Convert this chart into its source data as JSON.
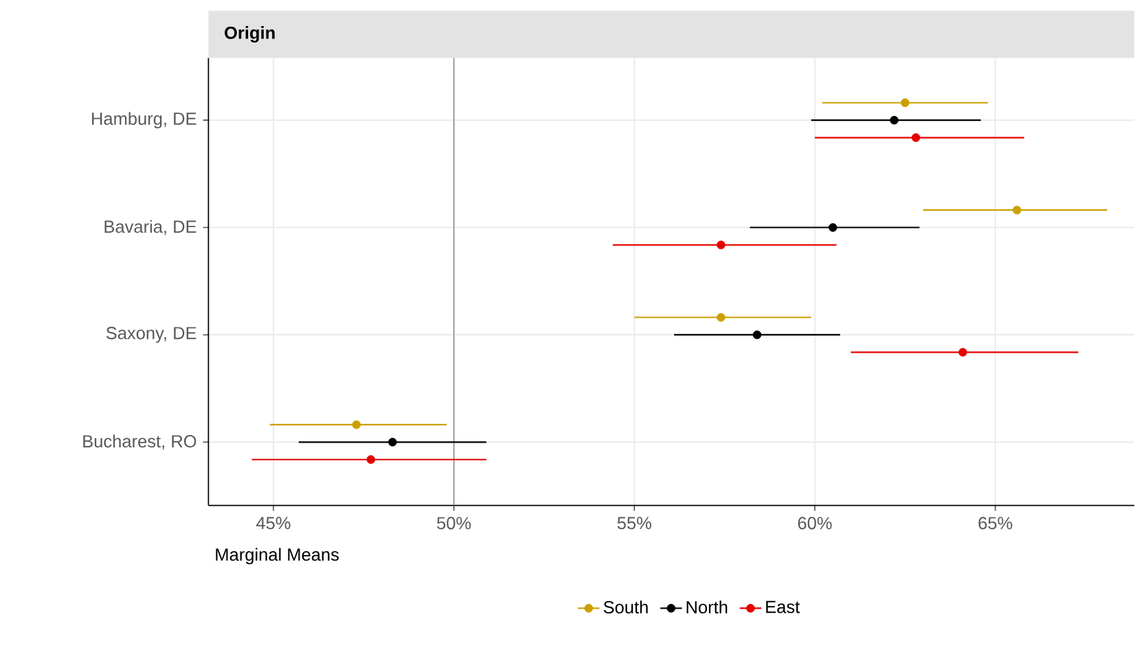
{
  "chart_data": {
    "type": "scatter",
    "title": "Origin",
    "xlabel": "Marginal Means",
    "orientation": "horizontal",
    "categories": [
      "Hamburg, DE",
      "Bavaria, DE",
      "Saxony, DE",
      "Bucharest, RO"
    ],
    "series": [
      {
        "name": "South",
        "color": "#cca000",
        "values": [
          62.5,
          65.6,
          57.4,
          47.3
        ],
        "errors": [
          [
            60.2,
            64.8
          ],
          [
            63.0,
            68.1
          ],
          [
            55.0,
            59.9
          ],
          [
            44.9,
            49.8
          ]
        ]
      },
      {
        "name": "North",
        "color": "#000000",
        "values": [
          62.2,
          60.5,
          58.4,
          48.3
        ],
        "errors": [
          [
            59.9,
            64.6
          ],
          [
            58.2,
            62.9
          ],
          [
            56.1,
            60.7
          ],
          [
            45.7,
            50.9
          ]
        ]
      },
      {
        "name": "East",
        "color": "#e50000",
        "values": [
          62.8,
          57.4,
          64.1,
          47.7
        ],
        "errors": [
          [
            60.0,
            65.8
          ],
          [
            54.4,
            60.6
          ],
          [
            61.0,
            67.3
          ],
          [
            44.4,
            50.9
          ]
        ]
      }
    ],
    "xlim": [
      43.2,
      68.85
    ],
    "xticks": [
      {
        "value": 45,
        "label": "45%"
      },
      {
        "value": 50,
        "label": "50%"
      },
      {
        "value": 55,
        "label": "55%"
      },
      {
        "value": 60,
        "label": "60%"
      },
      {
        "value": 65,
        "label": "65%"
      }
    ],
    "ref_lines": [
      {
        "axis": "x",
        "value": 50,
        "color": "#8c8c8c"
      }
    ],
    "grid": true,
    "legend": "bottom",
    "marker": "circle"
  }
}
